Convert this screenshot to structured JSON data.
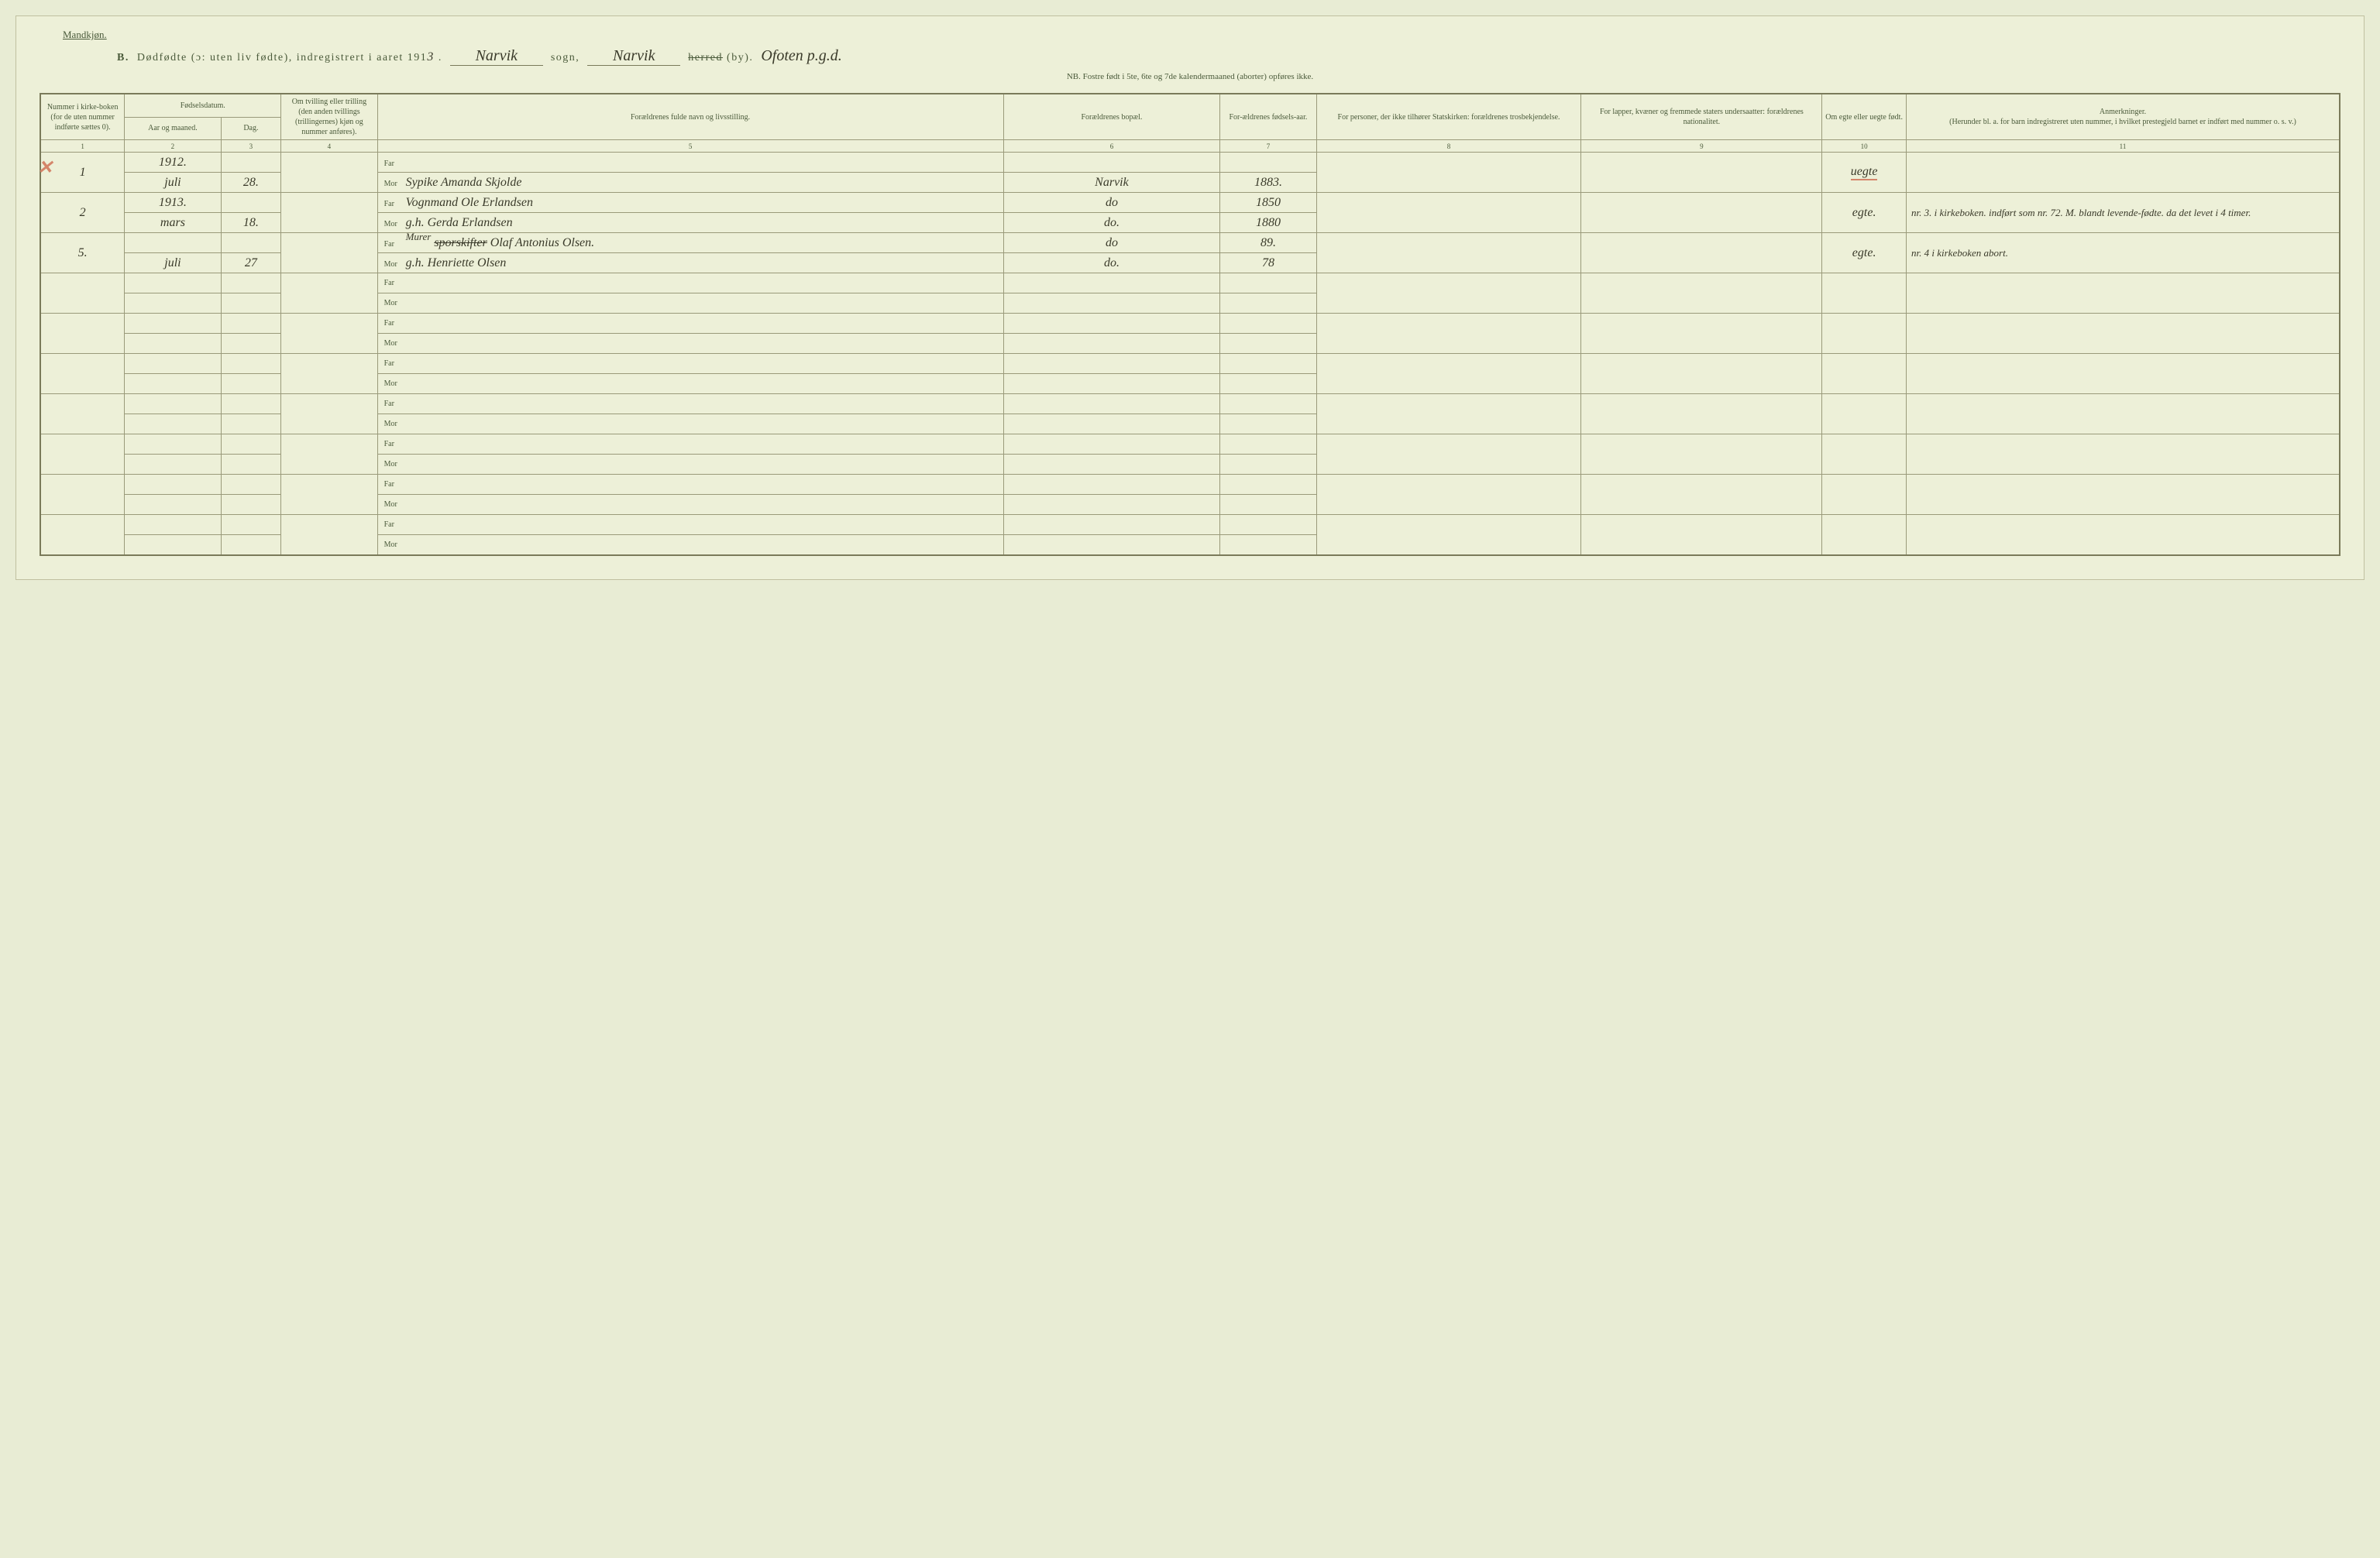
{
  "header": {
    "gender": "Mandkjøn.",
    "title_letter": "B.",
    "title_main": "Dødfødte (ɔ: uten liv fødte), indregistrert i aaret 191",
    "year_suffix": "3",
    "sogn_label": "sogn,",
    "sogn_value": "Narvik",
    "herred_label": "herred (by).",
    "herred_strike": "herred",
    "herred_value": "Narvik",
    "region_value": "Ofoten p.g.d.",
    "subtitle": "NB. Fostre født i 5te, 6te og 7de kalendermaaned (aborter) opføres ikke."
  },
  "columns": {
    "c1": "Nummer i kirke-boken (for de uten nummer indførte sættes 0).",
    "c2_group": "Fødselsdatum.",
    "c2": "Aar og maaned.",
    "c3": "Dag.",
    "c4": "Om tvilling eller trilling (den anden tvillings (trillingernes) kjøn og nummer anføres).",
    "c5": "Forældrenes fulde navn og livsstilling.",
    "c6": "Forældrenes bopæl.",
    "c7": "For-ældrenes fødsels-aar.",
    "c8": "For personer, der ikke tilhører Statskirken: forældrenes trosbekjendelse.",
    "c9": "For lapper, kvæner og fremmede staters undersaatter: forældrenes nationalitet.",
    "c10": "Om egte eller uegte født.",
    "c11_title": "Anmerkninger.",
    "c11_sub": "(Herunder bl. a. for barn indregistreret uten nummer, i hvilket prestegjeld barnet er indført med nummer o. s. v.)"
  },
  "colnums": [
    "1",
    "2",
    "3",
    "4",
    "5",
    "6",
    "7",
    "8",
    "9",
    "10",
    "11"
  ],
  "far_label": "Far",
  "mor_label": "Mor",
  "rows": [
    {
      "num": "1",
      "year": "1912.",
      "month": "juli",
      "day": "28.",
      "far": "",
      "mor": "Sypike Amanda Skjolde",
      "bopael_far": "",
      "bopael_mor": "Narvik",
      "fyear_far": "",
      "fyear_mor": "1883.",
      "egte": "uegte",
      "red_x": true,
      "red_ul_egte": true,
      "remarks": ""
    },
    {
      "num": "2",
      "year": "1913.",
      "month": "mars",
      "day": "18.",
      "far": "Vognmand Ole Erlandsen",
      "mor": "g.h. Gerda Erlandsen",
      "bopael_far": "do",
      "bopael_mor": "do.",
      "fyear_far": "1850",
      "fyear_mor": "1880",
      "egte": "egte.",
      "remarks": "nr. 3. i kirkeboken. indført som nr. 72. M. blandt levende-fødte. da det levet i 4 timer."
    },
    {
      "num": "5.",
      "year": "",
      "month": "juli",
      "day": "27",
      "far_strike": "sporskifter",
      "far_over": "Murer",
      "far": " Olaf Antonius Olsen.",
      "mor": "g.h. Henriette Olsen",
      "bopael_far": "do",
      "bopael_mor": "do.",
      "fyear_far": "89.",
      "fyear_mor": "78",
      "egte": "egte.",
      "remarks": "nr. 4 i kirkeboken abort."
    }
  ],
  "empty_rows": 7,
  "colors": {
    "bg": "#edf0d8",
    "line": "#7a7a5a",
    "text": "#4a5a3a",
    "ink": "#3a3a2a",
    "red": "#d4856a"
  }
}
